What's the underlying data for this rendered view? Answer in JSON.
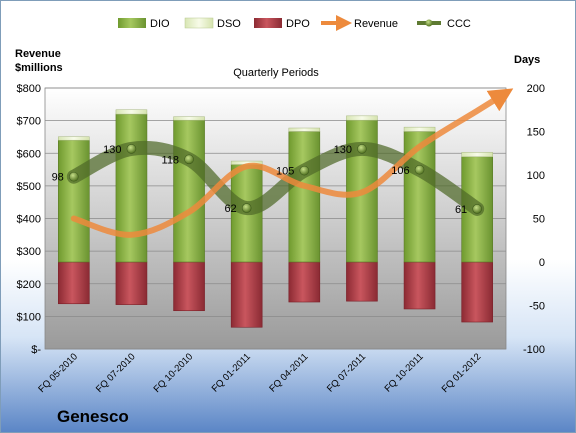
{
  "chart_data": {
    "type": "bar",
    "title": "Quarterly Periods",
    "company": "Genesco",
    "y_left_label_line1": "Revenue",
    "y_left_label_line2": "$millions",
    "y_right_label": "Days",
    "categories": [
      "FQ 05-2010",
      "FQ 07-2010",
      "FQ 10-2010",
      "FQ 01-2011",
      "FQ 04-2011",
      "FQ 07-2011",
      "FQ 10-2011",
      "FQ 01-2012"
    ],
    "y_left_ticks": [
      "$-",
      "$100",
      "$200",
      "$300",
      "$400",
      "$500",
      "$600",
      "$700",
      "$800"
    ],
    "y_left_range": [
      0,
      800
    ],
    "y_right_range": [
      -100,
      200
    ],
    "y_right_ticks": [
      -100,
      -50,
      0,
      50,
      100,
      150,
      200
    ],
    "legend": [
      "DIO",
      "DSO",
      "DPO",
      "Revenue",
      "CCC"
    ],
    "legend_placement": "top",
    "colors": {
      "DIO": "#8db04c",
      "DSO": "#e6f0c8",
      "DPO": "#b0404a",
      "Revenue": "#ed8a3c",
      "CCC": "#5e7a32"
    },
    "series": [
      {
        "name": "DIO",
        "values": [
          140,
          170,
          163,
          112,
          150,
          163,
          150,
          121
        ]
      },
      {
        "name": "DSO",
        "values": [
          4,
          5,
          4,
          4,
          4,
          5,
          5,
          5
        ]
      },
      {
        "name": "DPO",
        "values": [
          -48,
          -49,
          -56,
          -75,
          -46,
          -45,
          -54,
          -69
        ]
      },
      {
        "name": "Revenue",
        "values": [
          400,
          350,
          420,
          560,
          500,
          480,
          620,
          730
        ]
      },
      {
        "name": "CCC",
        "values": [
          98,
          130,
          118,
          62,
          105,
          130,
          106,
          61
        ]
      }
    ],
    "data_labels": [
      "98",
      "130",
      "118",
      "62",
      "105",
      "130",
      "106",
      "61"
    ]
  }
}
